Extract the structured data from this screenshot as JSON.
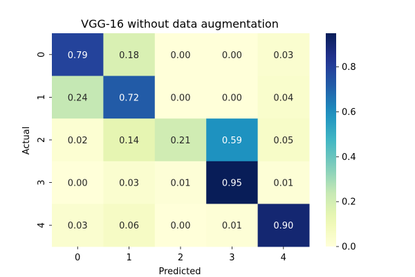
{
  "chart_data": {
    "type": "heatmap",
    "title": "VGG-16 without data augmentation",
    "xlabel": "Predicted",
    "ylabel": "Actual",
    "x_categories": [
      "0",
      "1",
      "2",
      "3",
      "4"
    ],
    "y_categories": [
      "0",
      "1",
      "2",
      "3",
      "4"
    ],
    "values": [
      [
        0.79,
        0.18,
        0.0,
        0.0,
        0.03
      ],
      [
        0.24,
        0.72,
        0.0,
        0.0,
        0.04
      ],
      [
        0.02,
        0.14,
        0.21,
        0.59,
        0.05
      ],
      [
        0.0,
        0.03,
        0.01,
        0.95,
        0.01
      ],
      [
        0.03,
        0.06,
        0.0,
        0.01,
        0.9
      ]
    ],
    "colormap": "YlGnBu",
    "colorbar": {
      "range": [
        0.0,
        0.95
      ],
      "ticks": [
        "0.0",
        "0.2",
        "0.4",
        "0.6",
        "0.8"
      ]
    },
    "value_format": "0.00",
    "grid": false
  }
}
